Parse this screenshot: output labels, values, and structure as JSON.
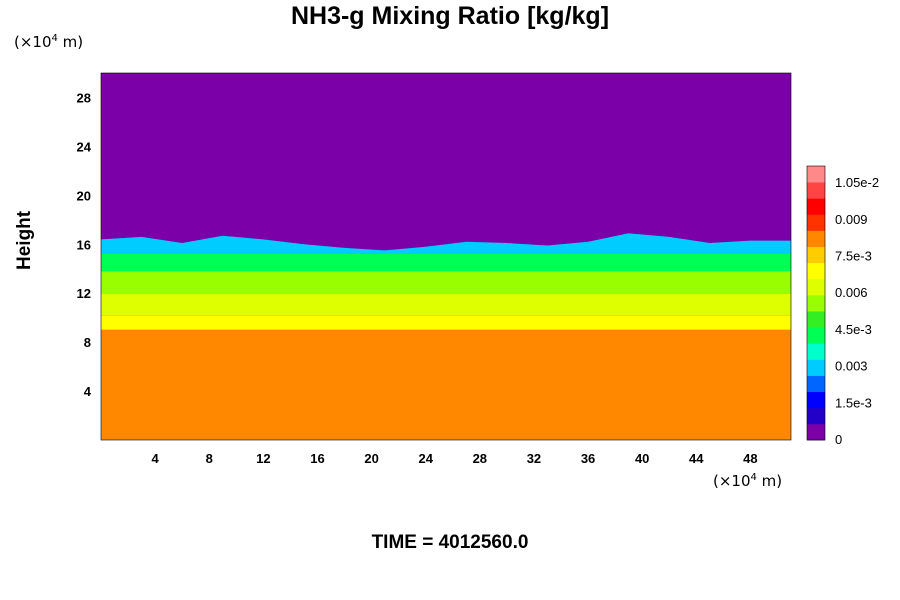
{
  "chart_data": {
    "type": "heatmap",
    "title": "NH3-g Mixing Ratio [kg/kg]",
    "ylabel": "Height",
    "x_unit": {
      "prefix": "(×10",
      "exp": "4",
      "suffix": " m)"
    },
    "y_unit": {
      "prefix": "(×10",
      "exp": "4",
      "suffix": " m)"
    },
    "xlim": [
      0,
      51
    ],
    "ylim": [
      0,
      30
    ],
    "x_ticks": [
      4,
      8,
      12,
      16,
      20,
      24,
      28,
      32,
      36,
      40,
      44,
      48
    ],
    "x_tick_labels": [
      "4",
      "8",
      "12",
      "16",
      "20",
      "24",
      "28",
      "32",
      "36",
      "40",
      "44",
      "48"
    ],
    "y_ticks": [
      4,
      8,
      12,
      16,
      20,
      24,
      28
    ],
    "y_tick_labels": [
      "4",
      "8",
      "12",
      "16",
      "20",
      "24",
      "28"
    ],
    "colorbar": {
      "range": [
        0,
        0.0112
      ],
      "ticks": [
        0,
        0.0015,
        0.003,
        0.0045,
        0.006,
        0.0075,
        0.009,
        0.0105
      ],
      "tick_labels": [
        "0",
        "1.5e-3",
        "0.003",
        "4.5e-3",
        "0.006",
        "7.5e-3",
        "0.009",
        "1.05e-2"
      ],
      "stops": [
        "#7b00a8",
        "#2200c8",
        "#0000ff",
        "#0066ff",
        "#00ccff",
        "#00ffcc",
        "#00ff55",
        "#33ee22",
        "#99ff00",
        "#ddff00",
        "#ffff00",
        "#ffcc00",
        "#ff8800",
        "#ff3300",
        "#ff0000",
        "#ff4444",
        "#ff8888"
      ]
    },
    "field": {
      "background_value": 0,
      "bands": [
        {
          "y_from": 0,
          "y_to": 9.0,
          "value": 0.0082
        },
        {
          "y_from": 9.0,
          "y_to": 10.2,
          "value": 0.0068
        },
        {
          "y_from": 10.2,
          "y_to": 12.0,
          "value": 0.006
        },
        {
          "y_from": 12.0,
          "y_to": 13.8,
          "value": 0.0055
        },
        {
          "y_from": 13.8,
          "y_to": 15.2,
          "value": 0.0042
        },
        {
          "y_from": 15.2,
          "y_to": 16.2,
          "value": 0.003
        }
      ],
      "top_edge_x": [
        0,
        3,
        6,
        9,
        12,
        15,
        18,
        21,
        24,
        27,
        30,
        33,
        36,
        39,
        42,
        45,
        48,
        51
      ],
      "top_edge_y": [
        16.4,
        16.6,
        16.1,
        16.7,
        16.4,
        16.0,
        15.7,
        15.5,
        15.8,
        16.2,
        16.1,
        15.9,
        16.2,
        16.9,
        16.6,
        16.1,
        16.3,
        16.3
      ]
    },
    "time_label": "TIME = 4012560.0"
  }
}
